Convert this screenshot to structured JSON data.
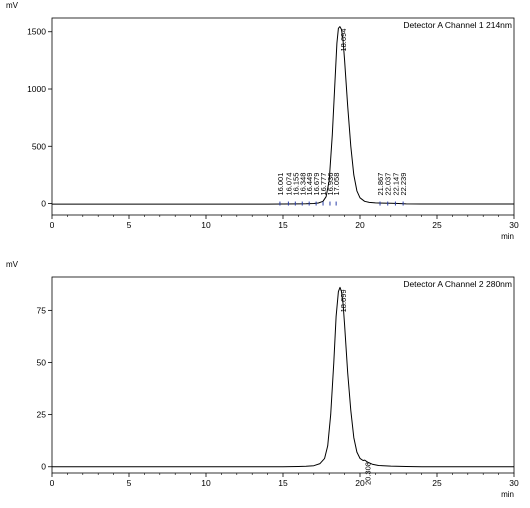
{
  "chart_data": [
    {
      "type": "line",
      "ylabel": "mV",
      "xlabel": "min",
      "channel_label": "Detector A Channel 1 214nm",
      "xlim": [
        0,
        30
      ],
      "ylim": [
        -100,
        1620
      ],
      "x_ticks": [
        0,
        5,
        10,
        15,
        20,
        25,
        30
      ],
      "y_ticks": [
        0,
        500,
        1000,
        1500
      ],
      "grid": false,
      "series": [
        {
          "points": [
            [
              0,
              -5
            ],
            [
              14,
              -5
            ],
            [
              15,
              -4
            ],
            [
              16,
              -3
            ],
            [
              16.5,
              -2
            ],
            [
              17,
              0
            ],
            [
              17.3,
              5
            ],
            [
              17.6,
              20
            ],
            [
              17.8,
              60
            ],
            [
              18,
              200
            ],
            [
              18.2,
              600
            ],
            [
              18.35,
              1000
            ],
            [
              18.5,
              1400
            ],
            [
              18.6,
              1530
            ],
            [
              18.694,
              1545
            ],
            [
              18.8,
              1520
            ],
            [
              18.9,
              1420
            ],
            [
              19,
              1250
            ],
            [
              19.2,
              850
            ],
            [
              19.4,
              500
            ],
            [
              19.6,
              250
            ],
            [
              19.8,
              110
            ],
            [
              20,
              50
            ],
            [
              20.3,
              20
            ],
            [
              20.6,
              10
            ],
            [
              21,
              6
            ],
            [
              21.5,
              4
            ],
            [
              22,
              2
            ],
            [
              22.5,
              0
            ],
            [
              23,
              -3
            ],
            [
              24,
              -4
            ],
            [
              25,
              -4
            ],
            [
              30,
              -4
            ]
          ]
        }
      ],
      "peaks": [
        {
          "label": "16.001",
          "rt": 14.8,
          "y": 0,
          "minor": true
        },
        {
          "label": "16.074",
          "rt": 15.35,
          "y": 0,
          "minor": true
        },
        {
          "label": "16.155",
          "rt": 15.8,
          "y": 0,
          "minor": true
        },
        {
          "label": "16.348",
          "rt": 16.25,
          "y": 0,
          "minor": true
        },
        {
          "label": "16.449",
          "rt": 16.7,
          "y": 0,
          "minor": true
        },
        {
          "label": "16.679",
          "rt": 17.15,
          "y": 0,
          "minor": true
        },
        {
          "label": "16.777",
          "rt": 17.6,
          "y": 0,
          "minor": true
        },
        {
          "label": "16.936",
          "rt": 18.05,
          "y": 0,
          "minor": true
        },
        {
          "label": "17.058",
          "rt": 18.45,
          "y": 0,
          "minor": true
        },
        {
          "label": "18.694",
          "rt": 18.694,
          "y": 1545,
          "minor": false
        },
        {
          "label": "21.867",
          "rt": 21.3,
          "y": 0,
          "minor": true
        },
        {
          "label": "22.037",
          "rt": 21.8,
          "y": 0,
          "minor": true
        },
        {
          "label": "22.147",
          "rt": 22.3,
          "y": 0,
          "minor": true
        },
        {
          "label": "22.239",
          "rt": 22.8,
          "y": 0,
          "minor": true
        }
      ]
    },
    {
      "type": "line",
      "ylabel": "mV",
      "xlabel": "min",
      "channel_label": "Detector A Channel 2 280nm",
      "xlim": [
        0,
        30
      ],
      "ylim": [
        -3,
        91
      ],
      "x_ticks": [
        0,
        5,
        10,
        15,
        20,
        25,
        30
      ],
      "y_ticks": [
        0,
        25,
        50,
        75
      ],
      "grid": false,
      "series": [
        {
          "points": [
            [
              0,
              0
            ],
            [
              15,
              0
            ],
            [
              16,
              0.1
            ],
            [
              16.5,
              0.2
            ],
            [
              17,
              0.5
            ],
            [
              17.4,
              1.5
            ],
            [
              17.7,
              4
            ],
            [
              17.9,
              10
            ],
            [
              18.1,
              25
            ],
            [
              18.3,
              50
            ],
            [
              18.45,
              72
            ],
            [
              18.6,
              84
            ],
            [
              18.699,
              86
            ],
            [
              18.8,
              84
            ],
            [
              18.9,
              78
            ],
            [
              19,
              68
            ],
            [
              19.2,
              45
            ],
            [
              19.4,
              27
            ],
            [
              19.6,
              14
            ],
            [
              19.8,
              7
            ],
            [
              20,
              4
            ],
            [
              20.2,
              3
            ],
            [
              20.308,
              3.2
            ],
            [
              20.5,
              2.2
            ],
            [
              20.8,
              1.2
            ],
            [
              21.2,
              0.6
            ],
            [
              22,
              0.3
            ],
            [
              23,
              0.1
            ],
            [
              24,
              0
            ],
            [
              30,
              0
            ]
          ]
        }
      ],
      "peaks": [
        {
          "label": "18.699",
          "rt": 18.699,
          "y": 86,
          "minor": false
        },
        {
          "label": "20.308",
          "rt": 20.308,
          "y": 3.2,
          "minor": false
        }
      ]
    }
  ]
}
